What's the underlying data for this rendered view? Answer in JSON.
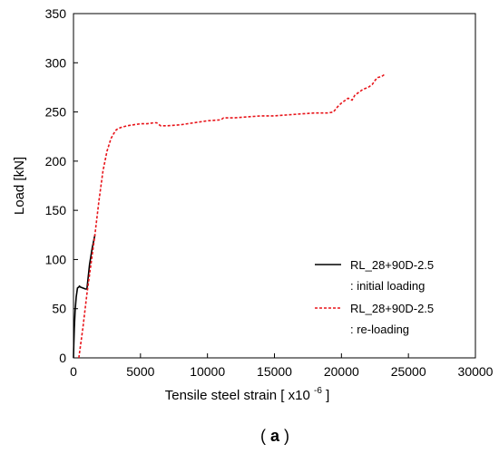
{
  "chart_data": {
    "type": "line",
    "xlabel": "Tensile steel strain [ x10",
    "xlabel_superscript": "-6",
    "xlabel_suffix": " ]",
    "ylabel": "Load [kN]",
    "xlim": [
      0,
      30000
    ],
    "ylim": [
      0,
      350
    ],
    "xticks": [
      0,
      5000,
      10000,
      15000,
      20000,
      25000,
      30000
    ],
    "yticks": [
      0,
      50,
      100,
      150,
      200,
      250,
      300,
      350
    ],
    "xtick_labels": [
      "0",
      "5000",
      "10000",
      "15000",
      "20000",
      "25000",
      "30000"
    ],
    "ytick_labels": [
      "0",
      "50",
      "100",
      "150",
      "200",
      "250",
      "300",
      "350"
    ],
    "grid": false,
    "legend_position": "right",
    "series": [
      {
        "name": "RL_28+90D-2.5",
        "name_suffix": ": initial loading",
        "color": "#000000",
        "style": "solid",
        "x": [
          0,
          20,
          60,
          120,
          200,
          300,
          400,
          450,
          500,
          700,
          900,
          1000,
          1200,
          1400,
          1600
        ],
        "y": [
          0,
          12,
          30,
          48,
          62,
          71,
          72,
          73,
          72,
          71,
          70,
          70,
          95,
          112,
          125
        ]
      },
      {
        "name": "RL_28+90D-2.5",
        "name_suffix": ": re-loading",
        "color": "#e8141a",
        "style": "dashed",
        "x": [
          400,
          700,
          1000,
          1300,
          1600,
          1900,
          2200,
          2500,
          2800,
          3000,
          3200,
          3500,
          4000,
          4500,
          5000,
          5500,
          6000,
          6200,
          6500,
          7000,
          8000,
          9000,
          10000,
          11000,
          11200,
          12000,
          13000,
          14000,
          15000,
          16000,
          17000,
          18000,
          19000,
          19400,
          19700,
          20000,
          20500,
          20800,
          21000,
          21300,
          21600,
          22000,
          22300,
          22500,
          22700,
          23000,
          23200
        ],
        "y": [
          0,
          30,
          65,
          95,
          125,
          160,
          190,
          210,
          223,
          228,
          232,
          234,
          236,
          237,
          238,
          238,
          239,
          239,
          236,
          236,
          237,
          239,
          241,
          242,
          244,
          244,
          245,
          246,
          246,
          247,
          248,
          249,
          249,
          250,
          255,
          259,
          264,
          262,
          267,
          270,
          273,
          275,
          278,
          282,
          285,
          286,
          288
        ]
      }
    ]
  },
  "caption": {
    "open": "(",
    "letter": "a",
    "close": ")"
  }
}
